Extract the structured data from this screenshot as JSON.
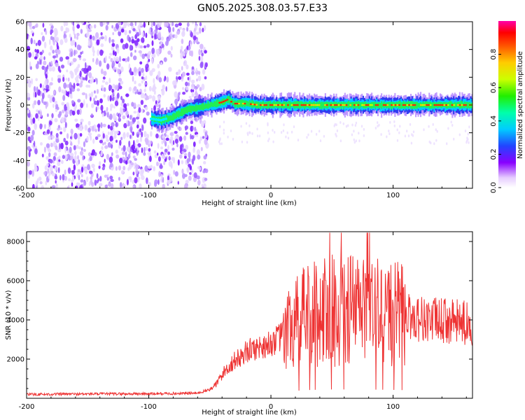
{
  "title": "GN05.2025.308.03.57.E33",
  "chart_data": [
    {
      "type": "heatmap",
      "name": "spectrogram",
      "xlabel": "Height of straight line (km)",
      "ylabel": "Frequency (Hz)",
      "xlim": [
        -200,
        165
      ],
      "ylim": [
        -60,
        60
      ],
      "xticks": [
        -200,
        -100,
        0,
        100
      ],
      "yticks": [
        60,
        40,
        20,
        0,
        -20,
        -40,
        -60
      ],
      "ytick_labels": [
        "60",
        "40",
        "20",
        "0",
        "-20",
        "-40",
        "-60"
      ],
      "noise_region_x": [
        -200,
        -52
      ],
      "ridge": {
        "x": [
          -98,
          -90,
          -82,
          -75,
          -68,
          -60,
          -55,
          -50,
          -45,
          -40,
          -35,
          -30,
          -20,
          -10,
          0,
          20,
          40,
          60,
          80,
          100,
          120,
          140,
          165
        ],
        "frequency": [
          -10,
          -11,
          -9,
          -6,
          -3,
          -2,
          -1,
          0,
          1,
          2,
          4,
          1,
          1,
          0,
          0,
          0,
          0,
          0,
          0,
          0,
          0,
          0,
          0
        ]
      }
    },
    {
      "type": "line",
      "name": "snr",
      "xlabel": "Height of straight line (km)",
      "ylabel": "SNR (10 * v/v)",
      "xlim": [
        -200,
        165
      ],
      "ylim": [
        0,
        8500
      ],
      "xticks": [
        -200,
        -100,
        0,
        100
      ],
      "yticks": [
        2000,
        4000,
        6000,
        8000
      ],
      "series": [
        {
          "name": "SNR",
          "color": "#ee3333",
          "x": [
            -200,
            -150,
            -100,
            -60,
            -50,
            -45,
            -40,
            -35,
            -30,
            -25,
            -20,
            -15,
            -10,
            -5,
            0,
            5,
            10,
            15,
            20,
            25,
            30,
            40,
            50,
            60,
            70,
            80,
            90,
            100,
            110,
            120,
            130,
            140,
            150,
            165
          ],
          "values": [
            200,
            220,
            230,
            260,
            450,
            700,
            1200,
            1600,
            1900,
            2100,
            2400,
            2500,
            2600,
            2700,
            2800,
            3000,
            3200,
            3500,
            3800,
            4000,
            4200,
            4400,
            4500,
            4500,
            4600,
            4500,
            4400,
            4300,
            4200,
            4100,
            4000,
            3950,
            3900,
            3800
          ]
        }
      ]
    }
  ],
  "colorbar": {
    "label": "Normalized spectral amplitude",
    "range": [
      0,
      1
    ],
    "ticks": [
      "0.0",
      "0.2",
      "0.4",
      "0.6",
      "0.8"
    ]
  }
}
